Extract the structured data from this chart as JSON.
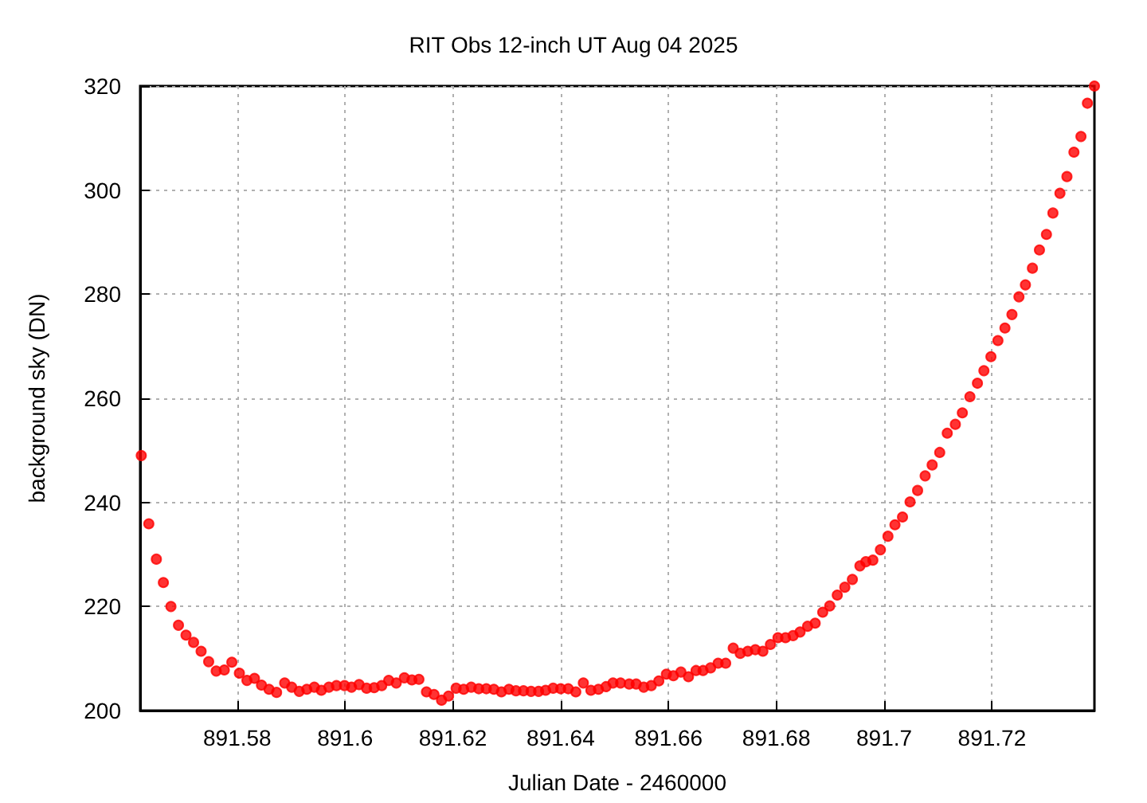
{
  "chart_data": {
    "type": "scatter",
    "title": "RIT Obs 12-inch UT Aug 04 2025",
    "xlabel": "Julian Date - 2460000",
    "ylabel": "background sky (DN)",
    "x": [
      891.5622,
      891.5636,
      891.565,
      891.5663,
      891.5677,
      891.5691,
      891.5705,
      891.5719,
      891.5733,
      891.5747,
      891.5761,
      891.5776,
      891.579,
      891.5804,
      891.5818,
      891.5832,
      891.5845,
      891.5859,
      891.5873,
      891.5888,
      891.5901,
      891.5915,
      891.5929,
      891.5943,
      891.5956,
      891.597,
      891.5984,
      891.5999,
      891.6012,
      891.6026,
      891.604,
      891.6054,
      891.6068,
      891.6081,
      891.6095,
      891.611,
      891.6124,
      891.6137,
      891.6151,
      891.6165,
      891.6179,
      891.6192,
      891.6206,
      891.622,
      891.6234,
      891.6248,
      891.6262,
      891.6276,
      891.629,
      891.6304,
      891.6317,
      891.6331,
      891.6345,
      891.6359,
      891.6372,
      891.6386,
      891.64,
      891.6414,
      891.6428,
      891.6442,
      891.6456,
      891.647,
      891.6484,
      891.6497,
      891.6511,
      891.6527,
      891.654,
      891.6554,
      891.6568,
      891.6582,
      891.6596,
      891.6609,
      891.6623,
      891.6637,
      891.6651,
      891.6664,
      891.6678,
      891.6692,
      891.6706,
      891.672,
      891.6733,
      891.6747,
      891.6761,
      891.6775,
      891.6789,
      891.6803,
      891.6817,
      891.6831,
      891.6844,
      891.6858,
      891.6872,
      891.6886,
      891.6899,
      891.6913,
      891.6927,
      891.6941,
      891.6955,
      891.6966,
      891.6979,
      891.6993,
      891.7007,
      891.702,
      891.7034,
      891.7048,
      891.7062,
      891.7076,
      891.7089,
      891.7103,
      891.7117,
      891.7132,
      891.7145,
      891.7159,
      891.7173,
      891.7185,
      891.7198,
      891.7211,
      891.7224,
      891.7237,
      891.725,
      891.7262,
      891.7275,
      891.7288,
      891.7301,
      891.7313,
      891.7326,
      891.7339,
      891.7352,
      891.7365,
      891.7377,
      891.739
    ],
    "values": [
      249.0,
      235.9,
      229.1,
      224.6,
      220.0,
      216.4,
      214.5,
      213.1,
      211.4,
      209.4,
      207.6,
      207.8,
      209.3,
      207.2,
      205.8,
      206.2,
      204.9,
      204.1,
      203.5,
      205.3,
      204.5,
      203.7,
      204.1,
      204.5,
      203.9,
      204.5,
      204.8,
      204.8,
      204.5,
      205.0,
      204.3,
      204.4,
      204.8,
      205.8,
      205.3,
      206.3,
      205.9,
      206.0,
      203.6,
      203.1,
      202.0,
      202.8,
      204.3,
      204.1,
      204.5,
      204.2,
      204.2,
      204.1,
      203.6,
      204.1,
      203.8,
      203.8,
      203.7,
      203.7,
      203.9,
      204.3,
      204.2,
      204.2,
      203.6,
      205.3,
      203.9,
      204.1,
      204.6,
      205.3,
      205.3,
      205.1,
      205.1,
      204.5,
      204.8,
      205.7,
      207.0,
      206.7,
      207.4,
      206.5,
      207.7,
      207.7,
      208.2,
      209.1,
      209.1,
      212.0,
      211.0,
      211.4,
      211.7,
      211.4,
      212.7,
      214.0,
      214.0,
      214.4,
      215.1,
      216.2,
      216.8,
      218.9,
      220.1,
      222.2,
      223.7,
      225.2,
      227.8,
      228.6,
      228.9,
      230.9,
      233.5,
      235.7,
      237.2,
      240.1,
      242.3,
      245.1,
      247.2,
      249.6,
      253.3,
      255.0,
      257.2,
      260.3,
      262.9,
      265.3,
      268.0,
      271.1,
      273.5,
      276.1,
      279.5,
      281.8,
      285.0,
      288.5,
      291.5,
      295.6,
      299.4,
      302.6,
      307.3,
      310.3,
      316.7,
      320.0
    ],
    "color": "#ff0000",
    "marker": "circle",
    "grid": true,
    "xlim": [
      891.562,
      891.739
    ],
    "xticks": [
      891.58,
      891.6,
      891.62,
      891.64,
      891.66,
      891.68,
      891.7,
      891.72
    ],
    "ylim": [
      200,
      320
    ],
    "yticks": [
      200,
      220,
      240,
      260,
      280,
      300,
      320
    ]
  }
}
